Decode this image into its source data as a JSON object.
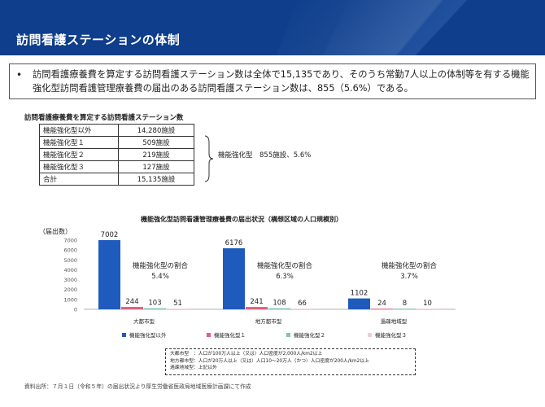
{
  "header": {
    "title": "訪問看護ステーションの体制"
  },
  "summary": {
    "bullet": "•",
    "text": "訪問看護療養費を算定する訪問看護ステーション数は全体で15,135であり、そのうち常勤7人以上の体制等を有する機能強化型訪問看護管理療養費の届出のある訪問看護ステーション数は、855（5.6%）である。"
  },
  "station_table": {
    "title": "訪問看護療養費を算定する訪問看護ステーション数",
    "rows": [
      {
        "name": "機能強化型以外",
        "value": "14,280施設"
      },
      {
        "name": "機能強化型１",
        "value": "509施設"
      },
      {
        "name": "機能強化型２",
        "value": "219施設"
      },
      {
        "name": "機能強化型３",
        "value": "127施設"
      },
      {
        "name": "合計",
        "value": "15,135施設"
      }
    ],
    "brace_label": "機能強化型　855施設、5.6%"
  },
  "chart_data": {
    "type": "bar",
    "title": "機能強化型訪問看護管理療養費の届出状況（構想区域の人口規模別）",
    "ylabel": "（届出数）",
    "ylim": [
      0,
      7000
    ],
    "yticks": [
      "0",
      "1000",
      "2000",
      "3000",
      "4000",
      "5000",
      "6000",
      "7000"
    ],
    "categories": [
      "大都市型",
      "地方都市型",
      "過疎地域型"
    ],
    "series": [
      {
        "name": "機能強化型以外",
        "color": "#1f5bbd",
        "values": [
          7002,
          6176,
          1102
        ]
      },
      {
        "name": "機能強化型１",
        "color": "#e0607e",
        "values": [
          244,
          241,
          24
        ]
      },
      {
        "name": "機能強化型２",
        "color": "#7fc4b4",
        "values": [
          103,
          108,
          8
        ]
      },
      {
        "name": "機能強化型３",
        "color": "#f4c9d6",
        "values": [
          51,
          66,
          10
        ]
      }
    ],
    "data_labels": [
      [
        "7002",
        "244",
        "103",
        "51"
      ],
      [
        "6176",
        "241",
        "108",
        "66"
      ],
      [
        "1102",
        "24",
        "8",
        "10"
      ]
    ],
    "annotations": [
      {
        "line1": "機能強化型の割合",
        "line2": "5.4%"
      },
      {
        "line1": "機能強化型の割合",
        "line2": "6.3%"
      },
      {
        "line1": "機能強化型の割合",
        "line2": "3.7%"
      }
    ],
    "legend_position": "bottom"
  },
  "notes": [
    "大都市型　：人口が100万人以上（又は）人口密度が2,000人/km2以上",
    "地方都市型：人口が20万人以上（又は）人口10〜20万人（かつ）人口密度が200人/km2以上",
    "過疎地域型：上記以外"
  ],
  "footer": {
    "source": "資料出所：７月１日（令和５年）の届出状況より厚生労働省医政局地域医療計画課にて作成"
  }
}
